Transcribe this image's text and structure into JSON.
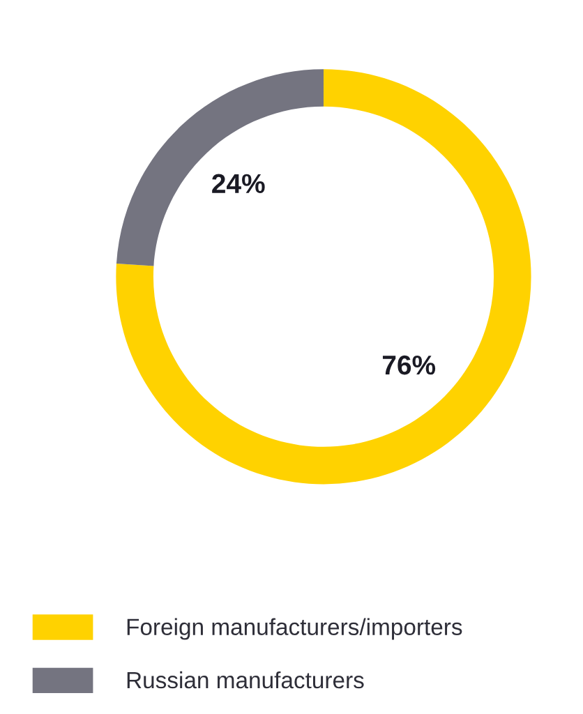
{
  "chart_data": {
    "type": "donut",
    "categories": [
      "Foreign manufacturers/importers",
      "Russian manufacturers"
    ],
    "values": [
      76,
      24
    ],
    "colors": [
      "#ffd200",
      "#747480"
    ],
    "value_labels": [
      "76%",
      "24%"
    ],
    "legend": "bottom"
  }
}
